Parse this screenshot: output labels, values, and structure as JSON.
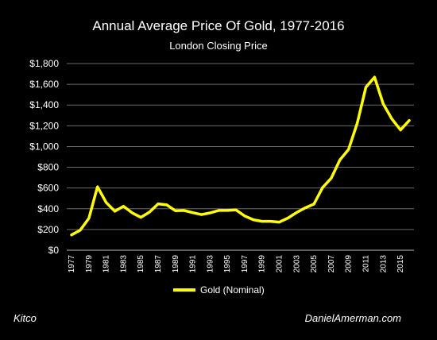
{
  "chart_data": {
    "type": "line",
    "title": "Annual Average Price Of Gold, 1977-2016",
    "subtitle": "London Closing Price",
    "y_ticks": [
      "$0",
      "$200",
      "$400",
      "$600",
      "$800",
      "$1,000",
      "$1,200",
      "$1,400",
      "$1,600",
      "$1,800"
    ],
    "ylim": [
      0,
      1800
    ],
    "x_ticks": [
      "1977",
      "1979",
      "1981",
      "1983",
      "1985",
      "1987",
      "1989",
      "1991",
      "1993",
      "1995",
      "1997",
      "1999",
      "2001",
      "2003",
      "2005",
      "2007",
      "2009",
      "2011",
      "2013",
      "2015"
    ],
    "grid": true,
    "legend_position": "bottom",
    "series": [
      {
        "name": "Gold (Nominal)",
        "color": "#ffff00",
        "x": [
          1977,
          1978,
          1979,
          1980,
          1981,
          1982,
          1983,
          1984,
          1985,
          1986,
          1987,
          1988,
          1989,
          1990,
          1991,
          1992,
          1993,
          1994,
          1995,
          1996,
          1997,
          1998,
          1999,
          2000,
          2001,
          2002,
          2003,
          2004,
          2005,
          2006,
          2007,
          2008,
          2009,
          2010,
          2011,
          2012,
          2013,
          2014,
          2015,
          2016
        ],
        "values": [
          148,
          193,
          307,
          612,
          460,
          376,
          424,
          361,
          317,
          368,
          447,
          437,
          381,
          384,
          362,
          344,
          360,
          384,
          384,
          388,
          331,
          294,
          279,
          279,
          271,
          310,
          364,
          409,
          445,
          604,
          695,
          872,
          972,
          1225,
          1572,
          1669,
          1411,
          1266,
          1160,
          1251
        ]
      }
    ]
  },
  "footer": {
    "source": "Kitco",
    "site": "DanielAmerman.com"
  }
}
